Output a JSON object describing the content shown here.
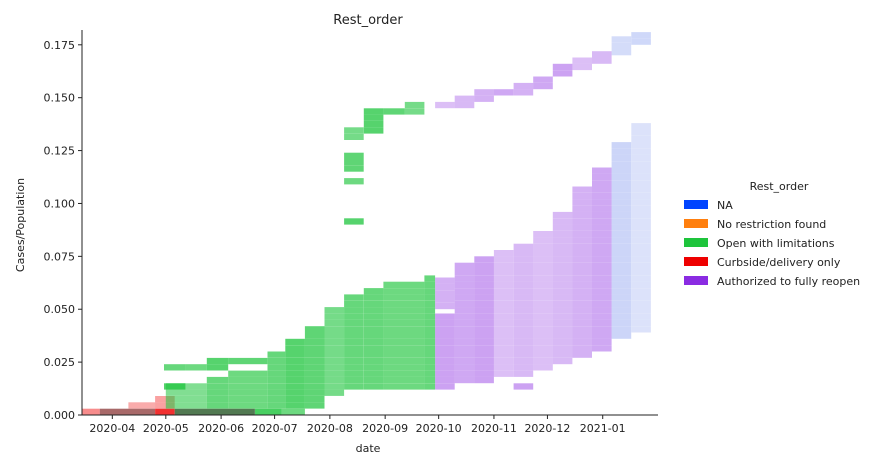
{
  "chart_data": {
    "type": "heatmap",
    "title": "Rest_order",
    "xlabel": "date",
    "ylabel": "Cases/Population",
    "x_ticks": [
      "2020-04",
      "2020-05",
      "2020-06",
      "2020-07",
      "2020-08",
      "2020-09",
      "2020-10",
      "2020-11",
      "2020-12",
      "2021-01"
    ],
    "y_ticks": [
      "0.000",
      "0.025",
      "0.050",
      "0.075",
      "0.100",
      "0.125",
      "0.150",
      "0.175"
    ],
    "xlim": [
      "2020-03-15",
      "2021-02-01"
    ],
    "ylim": [
      0,
      0.182
    ],
    "legend": {
      "title": "Rest_order",
      "placement": "right",
      "entries": [
        {
          "label": "NA",
          "color": "#0044ff"
        },
        {
          "label": "No restriction found",
          "color": "#ff7f0e"
        },
        {
          "label": "Open with limitations",
          "color": "#1ec43c"
        },
        {
          "label": "Curbside/delivery only",
          "color": "#ee0000"
        },
        {
          "label": "Authorized to fully reopen",
          "color": "#8a2be2"
        }
      ]
    },
    "bin_height": 0.003,
    "series": [
      {
        "name": "Curbside/delivery only",
        "color": "#ee0000",
        "columns": [
          {
            "start": "2020-03-15",
            "end": "2020-03-25",
            "lo": 0,
            "hi": 0.003,
            "alpha": 0.45
          },
          {
            "start": "2020-03-25",
            "end": "2020-04-25",
            "lo": 0,
            "hi": 0.003,
            "alpha": 0.75,
            "shade": "#7a1818"
          },
          {
            "start": "2020-04-10",
            "end": "2020-04-25",
            "lo": 0.003,
            "hi": 0.006,
            "alpha": 0.3
          },
          {
            "start": "2020-04-25",
            "end": "2020-05-06",
            "lo": 0,
            "hi": 0.003,
            "alpha": 0.95
          },
          {
            "start": "2020-04-25",
            "end": "2020-05-06",
            "lo": 0.003,
            "hi": 0.009,
            "alpha": 0.3
          }
        ]
      },
      {
        "name": "Open with limitations",
        "color": "#1ec43c",
        "columns": [
          {
            "start": "2020-04-30",
            "end": "2020-05-12",
            "lo": 0.021,
            "hi": 0.024,
            "alpha": 0.75
          },
          {
            "start": "2020-04-30",
            "end": "2020-05-12",
            "lo": 0.012,
            "hi": 0.015,
            "alpha": 0.75
          },
          {
            "start": "2020-05-12",
            "end": "2020-05-24",
            "lo": 0.021,
            "hi": 0.024,
            "alpha": 0.75
          },
          {
            "start": "2020-05-06",
            "end": "2020-06-20",
            "lo": 0,
            "hi": 0.003,
            "alpha": 0.85,
            "shade": "#2a5a2a"
          },
          {
            "start": "2020-05-01",
            "end": "2020-05-24",
            "lo": 0.003,
            "hi": 0.015,
            "alpha": 0.7
          },
          {
            "start": "2020-05-24",
            "end": "2020-06-05",
            "lo": 0.003,
            "hi": 0.018,
            "alpha": 0.75
          },
          {
            "start": "2020-05-24",
            "end": "2020-06-05",
            "lo": 0.021,
            "hi": 0.027,
            "alpha": 0.75
          },
          {
            "start": "2020-06-05",
            "end": "2020-06-27",
            "lo": 0.003,
            "hi": 0.021,
            "alpha": 0.75
          },
          {
            "start": "2020-06-05",
            "end": "2020-06-27",
            "lo": 0.024,
            "hi": 0.027,
            "alpha": 0.75
          },
          {
            "start": "2020-06-20",
            "end": "2020-07-05",
            "lo": 0,
            "hi": 0.003,
            "alpha": 0.95
          },
          {
            "start": "2020-06-27",
            "end": "2020-07-07",
            "lo": 0.003,
            "hi": 0.03,
            "alpha": 0.75
          },
          {
            "start": "2020-07-07",
            "end": "2020-07-18",
            "lo": 0.003,
            "hi": 0.036,
            "alpha": 0.75
          },
          {
            "start": "2020-07-05",
            "end": "2020-07-18",
            "lo": 0,
            "hi": 0.003,
            "alpha": 0.75
          },
          {
            "start": "2020-07-18",
            "end": "2020-07-29",
            "lo": 0.003,
            "hi": 0.042,
            "alpha": 0.75
          },
          {
            "start": "2020-07-29",
            "end": "2020-08-09",
            "lo": 0.009,
            "hi": 0.051,
            "alpha": 0.75
          },
          {
            "start": "2020-08-09",
            "end": "2020-08-20",
            "lo": 0.012,
            "hi": 0.057,
            "alpha": 0.75
          },
          {
            "start": "2020-08-09",
            "end": "2020-08-20",
            "lo": 0.09,
            "hi": 0.093,
            "alpha": 0.75
          },
          {
            "start": "2020-08-09",
            "end": "2020-08-20",
            "lo": 0.109,
            "hi": 0.112,
            "alpha": 0.75
          },
          {
            "start": "2020-08-09",
            "end": "2020-08-20",
            "lo": 0.115,
            "hi": 0.124,
            "alpha": 0.75
          },
          {
            "start": "2020-08-09",
            "end": "2020-08-20",
            "lo": 0.13,
            "hi": 0.136,
            "alpha": 0.75
          },
          {
            "start": "2020-08-20",
            "end": "2020-08-31",
            "lo": 0.012,
            "hi": 0.06,
            "alpha": 0.75
          },
          {
            "start": "2020-08-20",
            "end": "2020-08-31",
            "lo": 0.133,
            "hi": 0.145,
            "alpha": 0.75
          },
          {
            "start": "2020-08-31",
            "end": "2020-09-23",
            "lo": 0.012,
            "hi": 0.063,
            "alpha": 0.75
          },
          {
            "start": "2020-08-31",
            "end": "2020-09-12",
            "lo": 0.142,
            "hi": 0.145,
            "alpha": 0.75
          },
          {
            "start": "2020-09-12",
            "end": "2020-09-23",
            "lo": 0.142,
            "hi": 0.148,
            "alpha": 0.75
          },
          {
            "start": "2020-09-23",
            "end": "2020-09-29",
            "lo": 0.012,
            "hi": 0.066,
            "alpha": 0.75
          }
        ]
      },
      {
        "name": "Authorized to fully reopen",
        "color": "#8a2be2",
        "columns": [
          {
            "start": "2020-09-29",
            "end": "2020-10-10",
            "lo": 0.012,
            "hi": 0.048,
            "alpha": 0.3
          },
          {
            "start": "2020-09-29",
            "end": "2020-10-10",
            "lo": 0.05,
            "hi": 0.066,
            "alpha": 0.3
          },
          {
            "start": "2020-09-29",
            "end": "2020-10-10",
            "lo": 0.145,
            "hi": 0.148,
            "alpha": 0.3
          },
          {
            "start": "2020-10-10",
            "end": "2020-10-21",
            "lo": 0.015,
            "hi": 0.072,
            "alpha": 0.3
          },
          {
            "start": "2020-10-10",
            "end": "2020-10-21",
            "lo": 0.145,
            "hi": 0.151,
            "alpha": 0.3
          },
          {
            "start": "2020-10-21",
            "end": "2020-11-01",
            "lo": 0.015,
            "hi": 0.075,
            "alpha": 0.3
          },
          {
            "start": "2020-10-21",
            "end": "2020-11-01",
            "lo": 0.148,
            "hi": 0.154,
            "alpha": 0.3
          },
          {
            "start": "2020-11-01",
            "end": "2020-11-12",
            "lo": 0.018,
            "hi": 0.078,
            "alpha": 0.3
          },
          {
            "start": "2020-11-01",
            "end": "2020-11-12",
            "lo": 0.151,
            "hi": 0.154,
            "alpha": 0.3
          },
          {
            "start": "2020-11-12",
            "end": "2020-11-23",
            "lo": 0.018,
            "hi": 0.081,
            "alpha": 0.3
          },
          {
            "start": "2020-11-12",
            "end": "2020-11-23",
            "lo": 0.012,
            "hi": 0.015,
            "alpha": 0.3
          },
          {
            "start": "2020-11-12",
            "end": "2020-11-23",
            "lo": 0.151,
            "hi": 0.157,
            "alpha": 0.3
          },
          {
            "start": "2020-11-23",
            "end": "2020-12-04",
            "lo": 0.021,
            "hi": 0.087,
            "alpha": 0.3
          },
          {
            "start": "2020-11-23",
            "end": "2020-12-04",
            "lo": 0.154,
            "hi": 0.16,
            "alpha": 0.3
          },
          {
            "start": "2020-12-04",
            "end": "2020-12-15",
            "lo": 0.024,
            "hi": 0.097,
            "alpha": 0.3
          },
          {
            "start": "2020-12-04",
            "end": "2020-12-15",
            "lo": 0.16,
            "hi": 0.166,
            "alpha": 0.3
          },
          {
            "start": "2020-12-15",
            "end": "2020-12-26",
            "lo": 0.027,
            "hi": 0.109,
            "alpha": 0.3
          },
          {
            "start": "2020-12-15",
            "end": "2020-12-26",
            "lo": 0.163,
            "hi": 0.169,
            "alpha": 0.3
          },
          {
            "start": "2020-12-26",
            "end": "2021-01-06",
            "lo": 0.03,
            "hi": 0.118,
            "alpha": 0.3
          },
          {
            "start": "2020-12-26",
            "end": "2021-01-06",
            "lo": 0.166,
            "hi": 0.172,
            "alpha": 0.3
          },
          {
            "start": "2021-01-06",
            "end": "2021-01-17",
            "lo": 0.036,
            "hi": 0.13,
            "alpha": 0.3,
            "shade": "#8aa0f0"
          },
          {
            "start": "2021-01-06",
            "end": "2021-01-17",
            "lo": 0.17,
            "hi": 0.179,
            "alpha": 0.3,
            "shade": "#8aa0f0"
          },
          {
            "start": "2021-01-17",
            "end": "2021-01-28",
            "lo": 0.039,
            "hi": 0.139,
            "alpha": 0.3,
            "shade": "#8aa0f0"
          },
          {
            "start": "2021-01-17",
            "end": "2021-01-28",
            "lo": 0.175,
            "hi": 0.182,
            "alpha": 0.3,
            "shade": "#8aa0f0"
          }
        ]
      }
    ]
  }
}
